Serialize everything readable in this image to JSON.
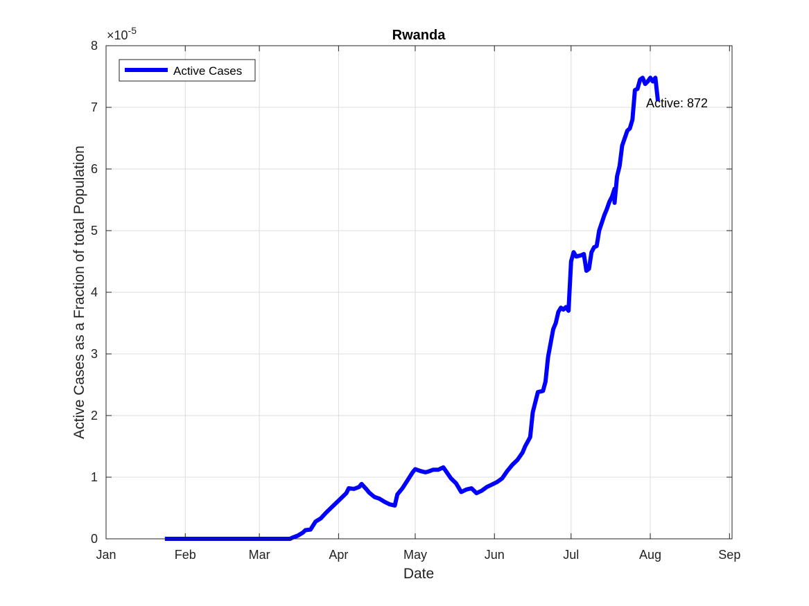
{
  "chart_data": {
    "type": "line",
    "title": "Rwanda",
    "xlabel": "Date",
    "ylabel": "Active Cases as a Fraction of total Population",
    "y_exponent_label": "×10",
    "y_exponent_power": "-5",
    "y_scale": 1e-05,
    "x_tick_labels": [
      "Jan",
      "Feb",
      "Mar",
      "Apr",
      "May",
      "Jun",
      "Jul",
      "Aug",
      "Sep"
    ],
    "x_tick_dates": [
      "01-01",
      "02-01",
      "03-01",
      "04-01",
      "05-01",
      "06-01",
      "07-01",
      "08-01",
      "09-01"
    ],
    "xlim": [
      "01-01",
      "09-02"
    ],
    "ylim": [
      0,
      8
    ],
    "y_ticks": [
      0,
      1,
      2,
      3,
      4,
      5,
      6,
      7,
      8
    ],
    "grid": true,
    "legend": {
      "position": "top-left",
      "entries": [
        "Active Cases"
      ]
    },
    "annotation": {
      "text": "Active: 872",
      "x": "08-05",
      "y": 7.1
    },
    "series": [
      {
        "name": "Active Cases",
        "color": "#0000ff",
        "points": [
          [
            "01-24",
            0
          ],
          [
            "03-13",
            0
          ],
          [
            "03-14",
            0.02
          ],
          [
            "03-16",
            0.05
          ],
          [
            "03-18",
            0.1
          ],
          [
            "03-19",
            0.14
          ],
          [
            "03-21",
            0.15
          ],
          [
            "03-23",
            0.28
          ],
          [
            "03-25",
            0.33
          ],
          [
            "03-27",
            0.42
          ],
          [
            "03-29",
            0.5
          ],
          [
            "03-31",
            0.58
          ],
          [
            "04-02",
            0.66
          ],
          [
            "04-04",
            0.74
          ],
          [
            "04-05",
            0.82
          ],
          [
            "04-07",
            0.81
          ],
          [
            "04-09",
            0.84
          ],
          [
            "04-10",
            0.89
          ],
          [
            "04-12",
            0.8
          ],
          [
            "04-13",
            0.75
          ],
          [
            "04-15",
            0.68
          ],
          [
            "04-17",
            0.65
          ],
          [
            "04-19",
            0.6
          ],
          [
            "04-21",
            0.56
          ],
          [
            "04-23",
            0.54
          ],
          [
            "04-24",
            0.72
          ],
          [
            "04-26",
            0.82
          ],
          [
            "04-28",
            0.95
          ],
          [
            "04-30",
            1.08
          ],
          [
            "05-01",
            1.13
          ],
          [
            "05-03",
            1.1
          ],
          [
            "05-05",
            1.08
          ],
          [
            "05-06",
            1.09
          ],
          [
            "05-08",
            1.12
          ],
          [
            "05-10",
            1.12
          ],
          [
            "05-12",
            1.16
          ],
          [
            "05-13",
            1.1
          ],
          [
            "05-15",
            0.98
          ],
          [
            "05-17",
            0.9
          ],
          [
            "05-19",
            0.76
          ],
          [
            "05-21",
            0.8
          ],
          [
            "05-23",
            0.82
          ],
          [
            "05-25",
            0.74
          ],
          [
            "05-27",
            0.78
          ],
          [
            "05-29",
            0.84
          ],
          [
            "05-31",
            0.88
          ],
          [
            "06-02",
            0.92
          ],
          [
            "06-04",
            0.98
          ],
          [
            "06-06",
            1.1
          ],
          [
            "06-08",
            1.2
          ],
          [
            "06-10",
            1.28
          ],
          [
            "06-12",
            1.4
          ],
          [
            "06-13",
            1.5
          ],
          [
            "06-15",
            1.65
          ],
          [
            "06-16",
            2.05
          ],
          [
            "06-18",
            2.38
          ],
          [
            "06-20",
            2.4
          ],
          [
            "06-21",
            2.55
          ],
          [
            "06-22",
            2.95
          ],
          [
            "06-24",
            3.4
          ],
          [
            "06-25",
            3.5
          ],
          [
            "06-26",
            3.68
          ],
          [
            "06-27",
            3.75
          ],
          [
            "06-28",
            3.72
          ],
          [
            "06-29",
            3.76
          ],
          [
            "06-30",
            3.7
          ],
          [
            "07-01",
            4.5
          ],
          [
            "07-02",
            4.65
          ],
          [
            "07-03",
            4.58
          ],
          [
            "07-05",
            4.6
          ],
          [
            "07-06",
            4.62
          ],
          [
            "07-07",
            4.35
          ],
          [
            "07-08",
            4.38
          ],
          [
            "07-09",
            4.65
          ],
          [
            "07-10",
            4.73
          ],
          [
            "07-11",
            4.75
          ],
          [
            "07-12",
            5.0
          ],
          [
            "07-14",
            5.25
          ],
          [
            "07-15",
            5.35
          ],
          [
            "07-16",
            5.47
          ],
          [
            "07-17",
            5.55
          ],
          [
            "07-18",
            5.68
          ],
          [
            "07-18",
            5.45
          ],
          [
            "07-19",
            5.88
          ],
          [
            "07-20",
            6.05
          ],
          [
            "07-21",
            6.38
          ],
          [
            "07-22",
            6.5
          ],
          [
            "07-23",
            6.62
          ],
          [
            "07-24",
            6.66
          ],
          [
            "07-25",
            6.8
          ],
          [
            "07-26",
            7.28
          ],
          [
            "07-27",
            7.3
          ],
          [
            "07-28",
            7.45
          ],
          [
            "07-29",
            7.48
          ],
          [
            "07-30",
            7.38
          ],
          [
            "07-31",
            7.42
          ],
          [
            "08-01",
            7.48
          ],
          [
            "08-02",
            7.42
          ],
          [
            "08-03",
            7.48
          ],
          [
            "08-04",
            7.1
          ]
        ]
      }
    ]
  }
}
